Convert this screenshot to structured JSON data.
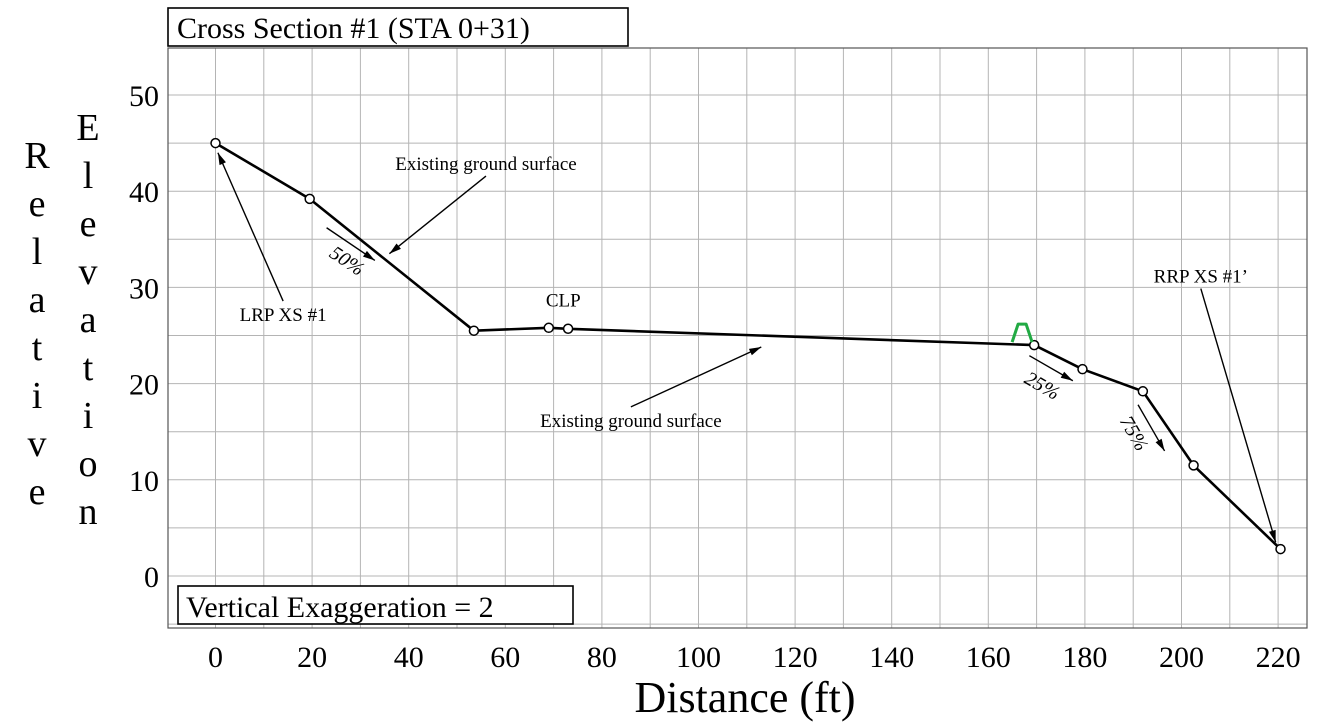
{
  "chart_data": {
    "type": "line",
    "title": "Cross Section #1 (STA 0+31)",
    "subtitle": "Vertical Exaggeration = 2",
    "xlabel": "Distance (ft)",
    "ylabel": "Relative Elevation",
    "xlim": [
      -10,
      226
    ],
    "ylim": [
      -5,
      55
    ],
    "grid": true,
    "x_ticks": [
      0,
      20,
      40,
      60,
      80,
      100,
      120,
      140,
      160,
      180,
      200,
      220
    ],
    "y_ticks": [
      0,
      10,
      20,
      30,
      40,
      50
    ],
    "series": [
      {
        "x": [
          0,
          19.5,
          53.5,
          69,
          73,
          169.5,
          179.5,
          192,
          202.5,
          220.5
        ],
        "y": [
          45,
          39.2,
          25.5,
          25.8,
          25.7,
          24,
          21.5,
          19.2,
          11.5,
          2.8
        ]
      }
    ],
    "annotations": [
      {
        "id": "lrp",
        "text": "LRP XS #1",
        "x": 14,
        "y": 26.5,
        "arrow_to": [
          0.5,
          44
        ]
      },
      {
        "id": "egs1",
        "text": "Existing ground surface",
        "x": 56,
        "y": 42.2,
        "arrow_to": [
          36,
          33.5
        ]
      },
      {
        "id": "clp",
        "text": "CLP",
        "x": 72,
        "y": 28
      },
      {
        "id": "egs2",
        "text": "Existing ground surface",
        "x": 86,
        "y": 15.5,
        "arrow_to": [
          113,
          23.8
        ]
      },
      {
        "id": "rrp",
        "text": "RRP XS #1’",
        "x": 204,
        "y": 30.5,
        "arrow_to": [
          219.5,
          3.5
        ]
      }
    ],
    "slopes": [
      {
        "text": "50%",
        "x": 26.5,
        "y": 32.2,
        "seg": [
          [
            23,
            36.2
          ],
          [
            33,
            32.8
          ]
        ]
      },
      {
        "text": "25%",
        "x": 170.5,
        "y": 19.2,
        "seg": [
          [
            168.5,
            22.9
          ],
          [
            177.5,
            20.3
          ]
        ]
      },
      {
        "text": "75%",
        "x": 189,
        "y": 14.5,
        "seg": [
          [
            191,
            17.8
          ],
          [
            196.5,
            13
          ]
        ]
      }
    ],
    "marker": {
      "name": "water-surface-symbol",
      "x": 167,
      "y": 24.1,
      "color": "#22aa44"
    }
  }
}
